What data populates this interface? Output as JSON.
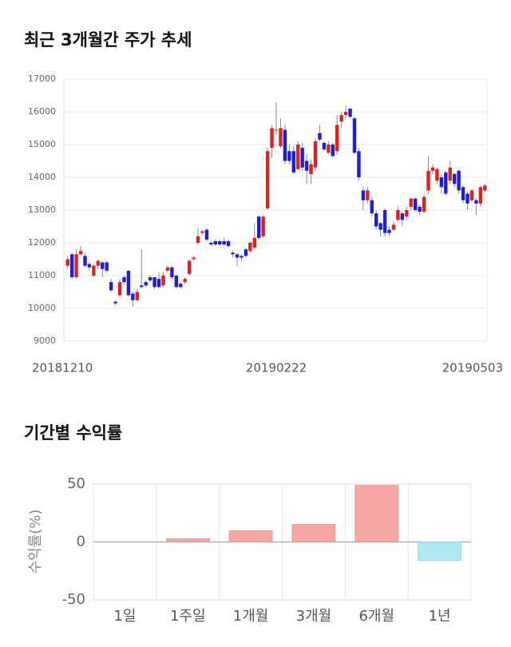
{
  "chart_data": [
    {
      "type": "candlestick",
      "title": "최근 3개월간 주가 추세",
      "categories": [
        "20181210",
        null,
        null,
        null,
        null,
        null,
        null,
        null,
        null,
        null,
        null,
        null,
        null,
        null,
        null,
        null,
        null,
        null,
        null,
        null,
        null,
        null,
        null,
        null,
        null,
        null,
        null,
        null,
        null,
        null,
        null,
        null,
        null,
        null,
        null,
        null,
        null,
        null,
        null,
        null,
        null,
        null,
        null,
        null,
        null,
        null,
        null,
        null,
        "20190222",
        null,
        null,
        null,
        null,
        null,
        null,
        null,
        null,
        null,
        null,
        null,
        null,
        null,
        null,
        null,
        null,
        null,
        null,
        null,
        null,
        null,
        null,
        null,
        null,
        null,
        null,
        null,
        null,
        null,
        null,
        null,
        null,
        null,
        null,
        null,
        null,
        null,
        null,
        null,
        null,
        null,
        null,
        null,
        null,
        null,
        null,
        null,
        "20190503"
      ],
      "open": [
        11300,
        11650,
        10950,
        11650,
        11600,
        11350,
        11000,
        11300,
        11400,
        11400,
        10800,
        10200,
        10400,
        10950,
        11150,
        10450,
        10250,
        10700,
        10800,
        10950,
        10950,
        10900,
        10700,
        11150,
        11250,
        11000,
        10750,
        10800,
        11050,
        11500,
        12000,
        12300,
        12400,
        12000,
        12050,
        12050,
        12050,
        12050,
        11700,
        11650,
        11600,
        11800,
        11750,
        11850,
        12800,
        12200,
        13050,
        14900,
        15450,
        14950,
        15450,
        14800,
        14800,
        14250,
        14900,
        14500,
        14100,
        14300,
        15350,
        15050,
        14750,
        15000,
        14800,
        15700,
        15900,
        16100,
        15800,
        14800,
        13600,
        13300,
        13300,
        12900,
        12600,
        13000,
        12400,
        12400,
        12700,
        12900,
        12800,
        13100,
        13350,
        13100,
        12950,
        13600,
        14200,
        13900,
        14000,
        14150,
        13900,
        14100,
        14200,
        13700,
        13500,
        13300,
        13300,
        13200,
        13600
      ],
      "high": [
        11600,
        11700,
        11800,
        11900,
        11700,
        11400,
        11350,
        11500,
        11450,
        11450,
        10900,
        10250,
        10900,
        11000,
        11150,
        10500,
        10600,
        11800,
        10850,
        11000,
        10950,
        11100,
        11100,
        11300,
        11300,
        11050,
        10800,
        10950,
        11500,
        11600,
        12450,
        12400,
        12450,
        12050,
        12100,
        12100,
        12150,
        12100,
        11750,
        11700,
        11650,
        11850,
        12050,
        12600,
        12850,
        12850,
        14900,
        15600,
        16300,
        15800,
        15600,
        15000,
        14950,
        15100,
        15050,
        14700,
        14550,
        15200,
        15600,
        15100,
        15100,
        15050,
        15900,
        16000,
        16200,
        16100,
        15850,
        14900,
        13700,
        13700,
        13400,
        13000,
        12650,
        13050,
        12500,
        12650,
        13100,
        12950,
        13100,
        13400,
        13400,
        13150,
        13450,
        14650,
        14400,
        14300,
        14100,
        14200,
        14500,
        14150,
        14250,
        13750,
        13550,
        13650,
        13350,
        13750,
        13800
      ],
      "low": [
        11200,
        10900,
        10900,
        11600,
        11250,
        11150,
        10950,
        11200,
        10950,
        11100,
        10500,
        10100,
        10350,
        10750,
        10350,
        10050,
        10200,
        10600,
        10650,
        10800,
        10600,
        10600,
        10650,
        11100,
        10900,
        10600,
        10600,
        10750,
        11000,
        11450,
        11950,
        12250,
        12050,
        11900,
        11900,
        11900,
        11900,
        11850,
        11550,
        11300,
        11450,
        11550,
        11700,
        11800,
        12100,
        12150,
        13000,
        14600,
        15300,
        14900,
        14400,
        14400,
        14100,
        14200,
        14200,
        13800,
        13800,
        14200,
        15100,
        14800,
        14700,
        14600,
        14700,
        15500,
        15800,
        15800,
        14700,
        13900,
        13000,
        13200,
        12800,
        12400,
        12200,
        12200,
        12200,
        12350,
        12650,
        12500,
        12700,
        13000,
        12950,
        12850,
        12900,
        13500,
        14100,
        13800,
        13500,
        13450,
        13800,
        13700,
        13500,
        13200,
        13000,
        13250,
        12850,
        13100,
        13550
      ],
      "close": [
        11500,
        10950,
        11650,
        11750,
        11300,
        11250,
        11300,
        11450,
        11200,
        11150,
        10550,
        10150,
        10800,
        10800,
        10400,
        10250,
        10500,
        10650,
        10700,
        10850,
        10650,
        10650,
        11000,
        11250,
        10950,
        10650,
        10650,
        10900,
        11450,
        11550,
        12200,
        12350,
        12100,
        11950,
        11950,
        11950,
        11950,
        11900,
        11650,
        11550,
        11550,
        11600,
        12000,
        12150,
        12150,
        12800,
        14800,
        15500,
        15450,
        15500,
        14500,
        14500,
        14150,
        15000,
        14300,
        14200,
        14400,
        15100,
        15150,
        14850,
        15000,
        14650,
        15600,
        15900,
        16000,
        15850,
        14750,
        14000,
        13300,
        13600,
        12900,
        12500,
        12400,
        12300,
        12300,
        12550,
        13000,
        12700,
        13000,
        13350,
        13000,
        12950,
        13400,
        14200,
        14300,
        14250,
        13700,
        13500,
        14300,
        13800,
        13600,
        13300,
        13200,
        13600,
        13200,
        13700,
        13750
      ],
      "up_color": "#e02020",
      "down_color": "#1f1fd0",
      "ylim": [
        9000,
        17000
      ],
      "yticks": [
        9000,
        10000,
        11000,
        12000,
        13000,
        14000,
        15000,
        16000,
        17000
      ],
      "grid": true
    },
    {
      "type": "bar",
      "title": "기간별 수익률",
      "y_label": "수익률(%)",
      "categories": [
        "1일",
        "1주일",
        "1개월",
        "3개월",
        "6개월",
        "1년"
      ],
      "values": [
        0,
        2.8,
        9.7,
        15.2,
        49,
        -16
      ],
      "positive_color": "#f7a6a6",
      "negative_color": "#aee9f2",
      "ylim": [
        -50,
        50
      ],
      "yticks": [
        -50,
        0,
        50
      ],
      "grid": true
    }
  ]
}
